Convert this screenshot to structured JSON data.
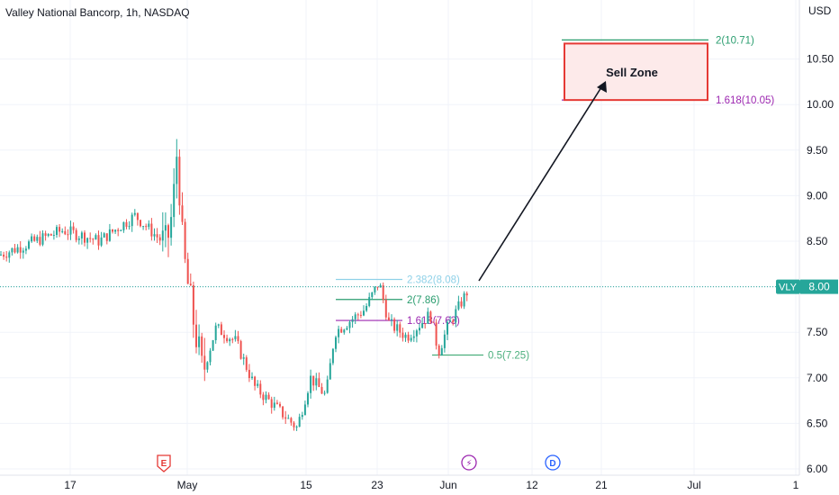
{
  "header": {
    "title": "Valley National Bancorp, 1h, NASDAQ"
  },
  "chart_data": {
    "type": "candlestick",
    "title": "Valley National Bancorp, 1h, NASDAQ",
    "symbol": "VLY",
    "currency": "USD",
    "last_price": "8.00",
    "ylim": [
      6.0,
      11.0
    ],
    "y_ticks": [
      "6.00",
      "6.50",
      "7.00",
      "7.50",
      "8.00",
      "8.50",
      "9.00",
      "9.50",
      "10.00",
      "10.50"
    ],
    "x_ticks": [
      "17",
      "May",
      "15",
      "23",
      "Jun",
      "12",
      "21",
      "Jul",
      "1"
    ],
    "price_path": [
      {
        "d": "Apr 10",
        "v": 8.35
      },
      {
        "d": "Apr 13",
        "v": 8.62
      },
      {
        "d": "Apr 17",
        "v": 8.55
      },
      {
        "d": "Apr 20",
        "v": 8.5
      },
      {
        "d": "Apr 24",
        "v": 8.78
      },
      {
        "d": "Apr 26",
        "v": 8.45
      },
      {
        "d": "Apr 27",
        "v": 8.85
      },
      {
        "d": "Apr 28",
        "v": 9.55
      },
      {
        "d": "Apr 29",
        "v": 8.4
      },
      {
        "d": "May 1",
        "v": 7.8
      },
      {
        "d": "May 3",
        "v": 7.05
      },
      {
        "d": "May 5",
        "v": 7.55
      },
      {
        "d": "May 8",
        "v": 7.4
      },
      {
        "d": "May 11",
        "v": 6.9
      },
      {
        "d": "May 13",
        "v": 6.45
      },
      {
        "d": "May 15",
        "v": 7.0
      },
      {
        "d": "May 18",
        "v": 6.8
      },
      {
        "d": "May 19",
        "v": 7.5
      },
      {
        "d": "May 22",
        "v": 7.75
      },
      {
        "d": "May 23",
        "v": 8.05
      },
      {
        "d": "May 25",
        "v": 7.6
      },
      {
        "d": "May 26",
        "v": 7.45
      },
      {
        "d": "May 29",
        "v": 7.7
      },
      {
        "d": "May 30",
        "v": 7.28
      },
      {
        "d": "Jun 1",
        "v": 7.55
      },
      {
        "d": "Jun 2",
        "v": 8.0
      }
    ],
    "fib_levels": [
      {
        "label": "2.382(8.08)",
        "value": 8.08,
        "color": "#8fd1e8"
      },
      {
        "label": "2(7.86)",
        "value": 7.86,
        "color": "#2a9d6f"
      },
      {
        "label": "1.618(7.63)",
        "value": 7.63,
        "color": "#9c27b0"
      },
      {
        "label": "0.5(7.25)",
        "value": 7.25,
        "color": "#4caf7d"
      },
      {
        "label": "2(10.71)",
        "value": 10.71,
        "color": "#2a9d6f"
      },
      {
        "label": "1.618(10.05)",
        "value": 10.05,
        "color": "#9c27b0"
      }
    ],
    "sell_zone": {
      "label": "Sell Zone",
      "from": 10.05,
      "to": 10.67
    },
    "event_markers": [
      "E",
      "⚡",
      "D"
    ],
    "colors": {
      "up": "#26a69a",
      "down": "#ef5350",
      "last_price_bg": "#26a69a",
      "sell_zone": "#e53935"
    }
  }
}
